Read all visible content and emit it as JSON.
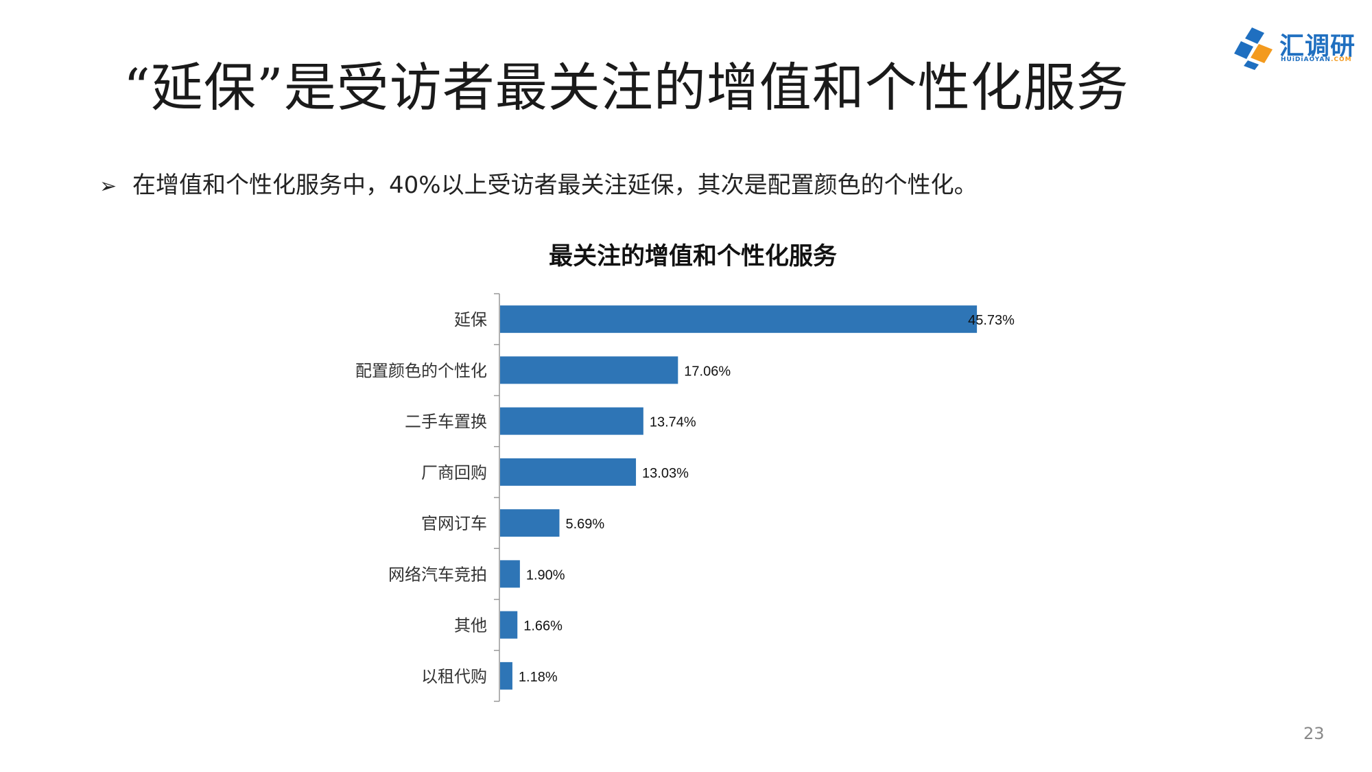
{
  "slide": {
    "title": "“延保”是受访者最关注的增值和个性化服务",
    "bullet_marker": "➢",
    "bullet_text": "在增值和个性化服务中，40%以上受访者最关注延保，其次是配置颜色的个性化。",
    "page_number": "23"
  },
  "logo": {
    "name": "汇调研",
    "sub_main": "HUiDiAOYAN",
    "sub_accent": ".COM",
    "colors": {
      "blue": "#1f6fc0",
      "orange": "#f39a1e"
    }
  },
  "chart_data": {
    "type": "bar",
    "orientation": "horizontal",
    "title": "最关注的增值和个性化服务",
    "categories": [
      "延保",
      "配置颜色的个性化",
      "二手车置换",
      "厂商回购",
      "官网订车",
      "网络汽车竞拍",
      "其他",
      "以租代购"
    ],
    "values": [
      45.73,
      17.06,
      13.74,
      13.03,
      5.69,
      1.9,
      1.66,
      1.18
    ],
    "value_labels": [
      "45.73%",
      "17.06%",
      "13.74%",
      "13.03%",
      "5.69%",
      "1.90%",
      "1.66%",
      "1.18%"
    ],
    "xlim": [
      0,
      50
    ],
    "grid": false,
    "legend": "none",
    "bar_color": "#2e75b6"
  }
}
